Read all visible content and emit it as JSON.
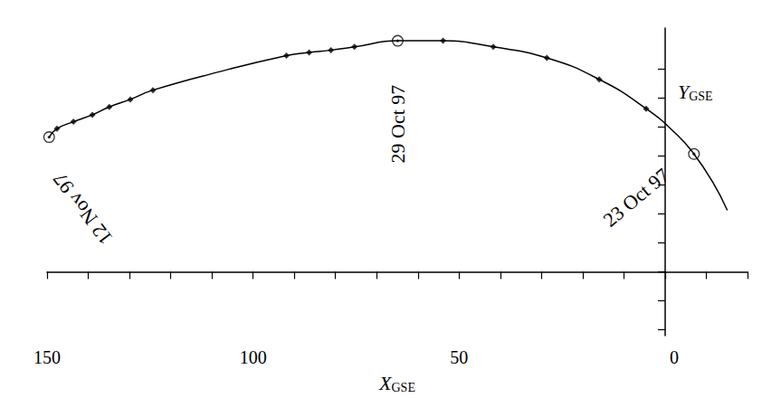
{
  "chart_data": {
    "type": "line",
    "xlabel": {
      "text": "X",
      "subscript": "GSE"
    },
    "ylabel": {
      "text": "Y",
      "subscript": "GSE"
    },
    "xlim": [
      150,
      -20
    ],
    "xticks": [
      150,
      100,
      50,
      0
    ],
    "ylim": [
      -22,
      84
    ],
    "yticks": [
      -20,
      -10,
      0,
      10,
      20,
      30,
      40,
      50,
      60,
      70
    ],
    "tick_labels": "x",
    "grid": false,
    "series": [
      {
        "type": "line",
        "color": "#000000",
        "marker": "none",
        "line_style": "solid",
        "x": [
          -15.1,
          -11.6,
          -7.0,
          -2.9,
          4.6,
          16.0,
          28.7,
          41.7,
          53.9,
          64.9,
          75.4,
          81.1,
          86.4,
          91.9,
          108.0,
          124.3,
          129.8,
          134.9,
          139.0,
          143.6,
          147.6,
          149.5
        ],
        "values": [
          21.2,
          30.8,
          40.6,
          47.2,
          56.2,
          66.3,
          73.7,
          77.5,
          79.6,
          79.6,
          77.5,
          76.4,
          75.6,
          74.5,
          69.0,
          62.6,
          59.4,
          56.8,
          54.1,
          51.7,
          49.3,
          46.4
        ]
      },
      {
        "type": "scatter",
        "color": "#000000",
        "marker": "diamond",
        "x": [
          4.6,
          16.0,
          28.7,
          41.7,
          53.9,
          75.4,
          81.1,
          86.4,
          91.9,
          124.3,
          129.8,
          134.9,
          139.0,
          143.6,
          147.6
        ],
        "values": [
          56.2,
          66.3,
          73.7,
          77.5,
          79.6,
          77.5,
          76.4,
          75.6,
          74.5,
          62.6,
          59.4,
          56.8,
          54.1,
          51.7,
          49.3
        ]
      },
      {
        "type": "scatter",
        "color": "#000000",
        "marker": "circled_dot",
        "x": [
          -7.0,
          64.9,
          149.5
        ],
        "values": [
          40.6,
          79.6,
          46.4
        ],
        "labels": [
          "23 Oct 97",
          "29 Oct 97",
          "12 Nov 97"
        ]
      }
    ]
  }
}
